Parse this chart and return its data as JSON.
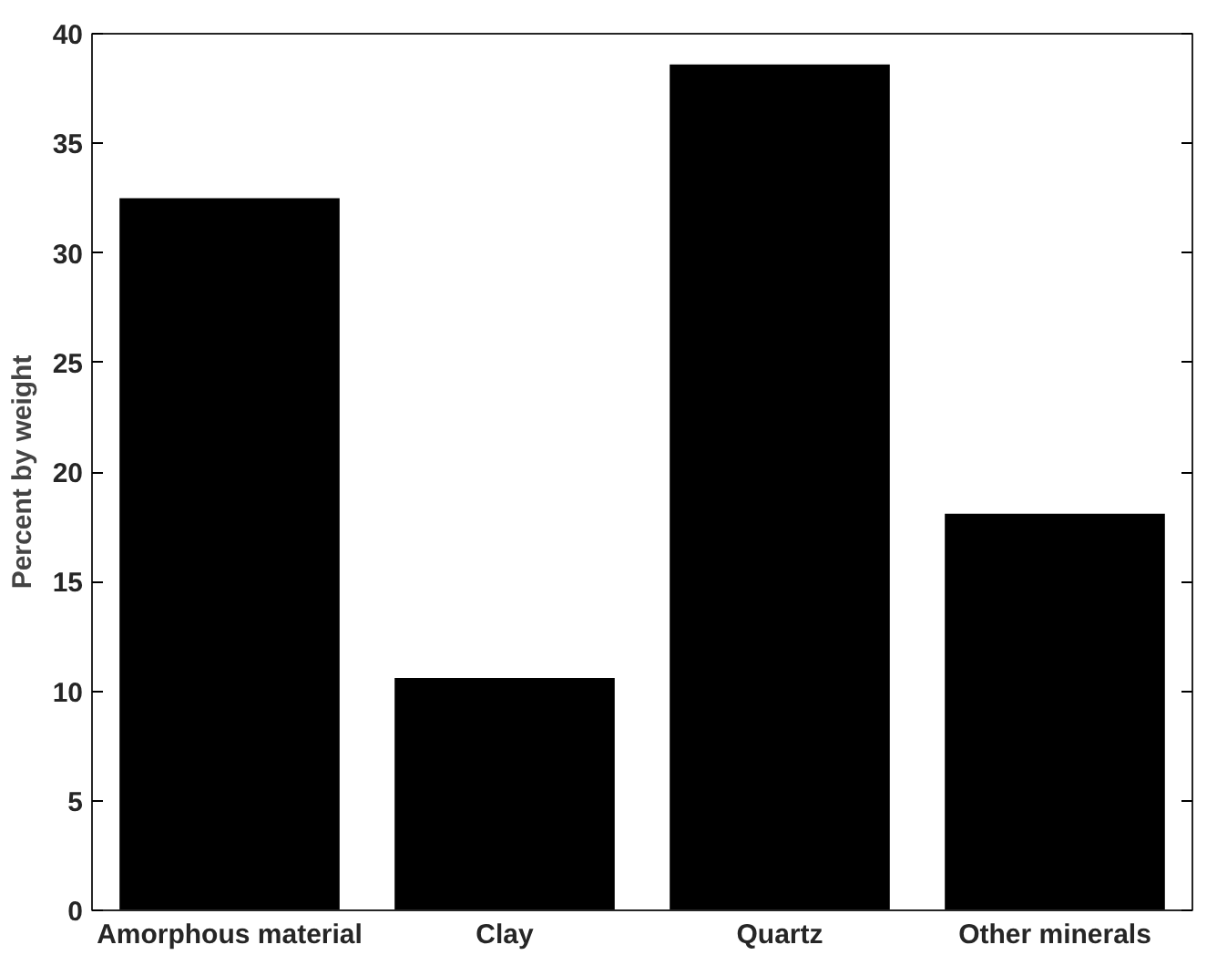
{
  "chart_data": {
    "type": "bar",
    "ylabel": "Percent by weight",
    "categories": [
      "Amorphous material",
      "Clay",
      "Quartz",
      "Other minerals"
    ],
    "values": [
      32.5,
      10.6,
      38.6,
      18.1
    ],
    "color": "#000000",
    "ylim": [
      0,
      40
    ],
    "yticks": [
      0,
      5,
      10,
      15,
      20,
      25,
      30,
      35,
      40
    ],
    "grid": false
  }
}
